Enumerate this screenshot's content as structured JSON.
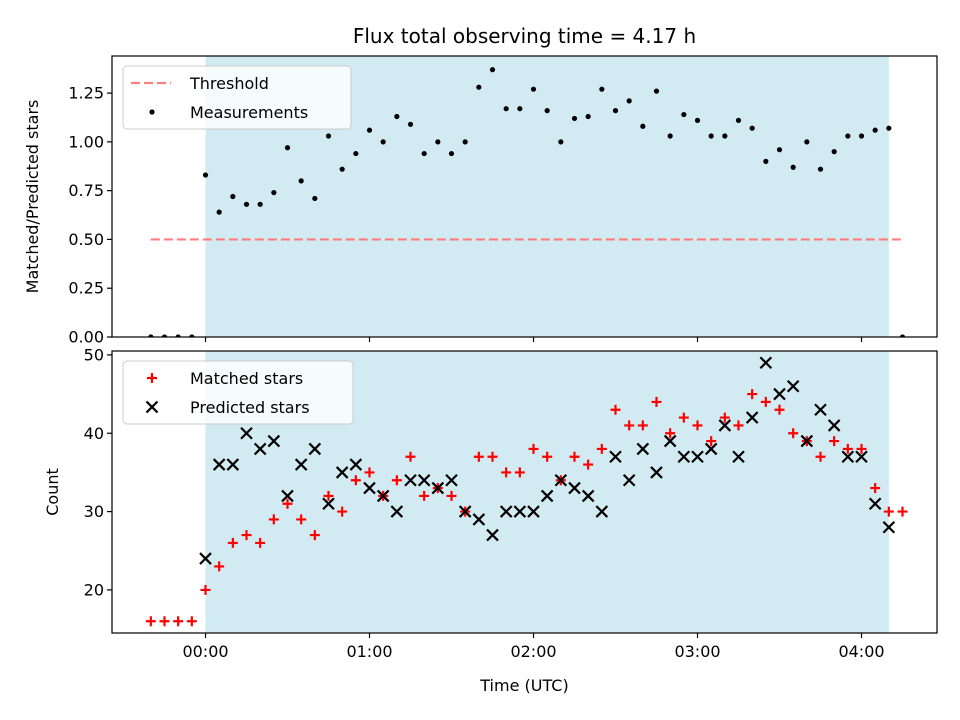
{
  "chart_data": [
    {
      "type": "scatter",
      "title": "Flux total observing time = 4.17 h",
      "xlabel": "",
      "ylabel": "Matched/Predicted stars",
      "x_tick_labels": [
        "00:00",
        "01:00",
        "02:00",
        "03:00",
        "04:00"
      ],
      "x_tick_labels_visible": false,
      "ylim": [
        0,
        1.44
      ],
      "yticks": [
        "0.00",
        "0.25",
        "0.50",
        "0.75",
        "1.00",
        "1.25"
      ],
      "observing_window": [
        "00:00",
        "04:10"
      ],
      "observing_window_color": "#add8e6",
      "threshold": {
        "name": "Threshold",
        "value": 0.5,
        "x_range": [
          "-00:20",
          "04:15"
        ],
        "color": "#ff7f7f",
        "style": "dashed"
      },
      "series": [
        {
          "name": "Measurements",
          "color": "#000000",
          "marker": "dot",
          "points": [
            [
              "-00:20",
              0.0
            ],
            [
              "-00:15",
              0.0
            ],
            [
              "-00:10",
              0.0
            ],
            [
              "-00:05",
              0.0
            ],
            [
              "00:00",
              0.83
            ],
            [
              "00:05",
              0.64
            ],
            [
              "00:10",
              0.72
            ],
            [
              "00:15",
              0.68
            ],
            [
              "00:20",
              0.68
            ],
            [
              "00:25",
              0.74
            ],
            [
              "00:30",
              0.97
            ],
            [
              "00:35",
              0.8
            ],
            [
              "00:40",
              0.71
            ],
            [
              "00:45",
              1.03
            ],
            [
              "00:50",
              0.86
            ],
            [
              "00:55",
              0.94
            ],
            [
              "01:00",
              1.06
            ],
            [
              "01:05",
              1.0
            ],
            [
              "01:10",
              1.13
            ],
            [
              "01:15",
              1.09
            ],
            [
              "01:20",
              0.94
            ],
            [
              "01:25",
              1.0
            ],
            [
              "01:30",
              0.94
            ],
            [
              "01:35",
              1.0
            ],
            [
              "01:40",
              1.28
            ],
            [
              "01:45",
              1.37
            ],
            [
              "01:50",
              1.17
            ],
            [
              "01:55",
              1.17
            ],
            [
              "02:00",
              1.27
            ],
            [
              "02:05",
              1.16
            ],
            [
              "02:10",
              1.0
            ],
            [
              "02:15",
              1.12
            ],
            [
              "02:20",
              1.13
            ],
            [
              "02:25",
              1.27
            ],
            [
              "02:30",
              1.16
            ],
            [
              "02:35",
              1.21
            ],
            [
              "02:40",
              1.08
            ],
            [
              "02:45",
              1.26
            ],
            [
              "02:50",
              1.03
            ],
            [
              "02:55",
              1.14
            ],
            [
              "03:00",
              1.11
            ],
            [
              "03:05",
              1.03
            ],
            [
              "03:10",
              1.03
            ],
            [
              "03:15",
              1.11
            ],
            [
              "03:20",
              1.07
            ],
            [
              "03:25",
              0.9
            ],
            [
              "03:30",
              0.96
            ],
            [
              "03:35",
              0.87
            ],
            [
              "03:40",
              1.0
            ],
            [
              "03:45",
              0.86
            ],
            [
              "03:50",
              0.95
            ],
            [
              "03:55",
              1.03
            ],
            [
              "04:00",
              1.03
            ],
            [
              "04:05",
              1.06
            ],
            [
              "04:10",
              1.07
            ],
            [
              "04:15",
              0.0
            ]
          ]
        }
      ],
      "legend": {
        "position": "upper left",
        "entries": [
          "Threshold",
          "Measurements"
        ]
      }
    },
    {
      "type": "scatter",
      "title": "",
      "xlabel": "Time (UTC)",
      "ylabel": "Count",
      "x_tick_labels": [
        "00:00",
        "01:00",
        "02:00",
        "03:00",
        "04:00"
      ],
      "ylim": [
        14.5,
        50.5
      ],
      "yticks": [
        "20",
        "30",
        "40",
        "50"
      ],
      "observing_window": [
        "00:00",
        "04:10"
      ],
      "observing_window_color": "#add8e6",
      "series": [
        {
          "name": "Matched stars",
          "color": "#ff0000",
          "marker": "plus",
          "points": [
            [
              "-00:20",
              16
            ],
            [
              "-00:15",
              16
            ],
            [
              "-00:10",
              16
            ],
            [
              "-00:05",
              16
            ],
            [
              "00:00",
              20
            ],
            [
              "00:05",
              23
            ],
            [
              "00:10",
              26
            ],
            [
              "00:15",
              27
            ],
            [
              "00:20",
              26
            ],
            [
              "00:25",
              29
            ],
            [
              "00:30",
              31
            ],
            [
              "00:35",
              29
            ],
            [
              "00:40",
              27
            ],
            [
              "00:45",
              32
            ],
            [
              "00:50",
              30
            ],
            [
              "00:55",
              34
            ],
            [
              "01:00",
              35
            ],
            [
              "01:05",
              32
            ],
            [
              "01:10",
              34
            ],
            [
              "01:15",
              37
            ],
            [
              "01:20",
              32
            ],
            [
              "01:25",
              33
            ],
            [
              "01:30",
              32
            ],
            [
              "01:35",
              30
            ],
            [
              "01:40",
              37
            ],
            [
              "01:45",
              37
            ],
            [
              "01:50",
              35
            ],
            [
              "01:55",
              35
            ],
            [
              "02:00",
              38
            ],
            [
              "02:05",
              37
            ],
            [
              "02:10",
              34
            ],
            [
              "02:15",
              37
            ],
            [
              "02:20",
              36
            ],
            [
              "02:25",
              38
            ],
            [
              "02:30",
              43
            ],
            [
              "02:35",
              41
            ],
            [
              "02:40",
              41
            ],
            [
              "02:45",
              44
            ],
            [
              "02:50",
              40
            ],
            [
              "02:55",
              42
            ],
            [
              "03:00",
              41
            ],
            [
              "03:05",
              39
            ],
            [
              "03:10",
              42
            ],
            [
              "03:15",
              41
            ],
            [
              "03:20",
              45
            ],
            [
              "03:25",
              44
            ],
            [
              "03:30",
              43
            ],
            [
              "03:35",
              40
            ],
            [
              "03:40",
              39
            ],
            [
              "03:45",
              37
            ],
            [
              "03:50",
              39
            ],
            [
              "03:55",
              38
            ],
            [
              "04:00",
              38
            ],
            [
              "04:05",
              33
            ],
            [
              "04:10",
              30
            ],
            [
              "04:15",
              30
            ]
          ]
        },
        {
          "name": "Predicted stars",
          "color": "#000000",
          "marker": "x",
          "points": [
            [
              "00:00",
              24
            ],
            [
              "00:05",
              36
            ],
            [
              "00:10",
              36
            ],
            [
              "00:15",
              40
            ],
            [
              "00:20",
              38
            ],
            [
              "00:25",
              39
            ],
            [
              "00:30",
              32
            ],
            [
              "00:35",
              36
            ],
            [
              "00:40",
              38
            ],
            [
              "00:45",
              31
            ],
            [
              "00:50",
              35
            ],
            [
              "00:55",
              36
            ],
            [
              "01:00",
              33
            ],
            [
              "01:05",
              32
            ],
            [
              "01:10",
              30
            ],
            [
              "01:15",
              34
            ],
            [
              "01:20",
              34
            ],
            [
              "01:25",
              33
            ],
            [
              "01:30",
              34
            ],
            [
              "01:35",
              30
            ],
            [
              "01:40",
              29
            ],
            [
              "01:45",
              27
            ],
            [
              "01:50",
              30
            ],
            [
              "01:55",
              30
            ],
            [
              "02:00",
              30
            ],
            [
              "02:05",
              32
            ],
            [
              "02:10",
              34
            ],
            [
              "02:15",
              33
            ],
            [
              "02:20",
              32
            ],
            [
              "02:25",
              30
            ],
            [
              "02:30",
              37
            ],
            [
              "02:35",
              34
            ],
            [
              "02:40",
              38
            ],
            [
              "02:45",
              35
            ],
            [
              "02:50",
              39
            ],
            [
              "02:55",
              37
            ],
            [
              "03:00",
              37
            ],
            [
              "03:05",
              38
            ],
            [
              "03:10",
              41
            ],
            [
              "03:15",
              37
            ],
            [
              "03:20",
              42
            ],
            [
              "03:25",
              49
            ],
            [
              "03:30",
              45
            ],
            [
              "03:35",
              46
            ],
            [
              "03:40",
              39
            ],
            [
              "03:45",
              43
            ],
            [
              "03:50",
              41
            ],
            [
              "03:55",
              37
            ],
            [
              "04:00",
              37
            ],
            [
              "04:05",
              31
            ],
            [
              "04:10",
              28
            ]
          ]
        }
      ],
      "legend": {
        "position": "upper left",
        "entries": [
          "Matched stars",
          "Predicted stars"
        ]
      }
    }
  ]
}
